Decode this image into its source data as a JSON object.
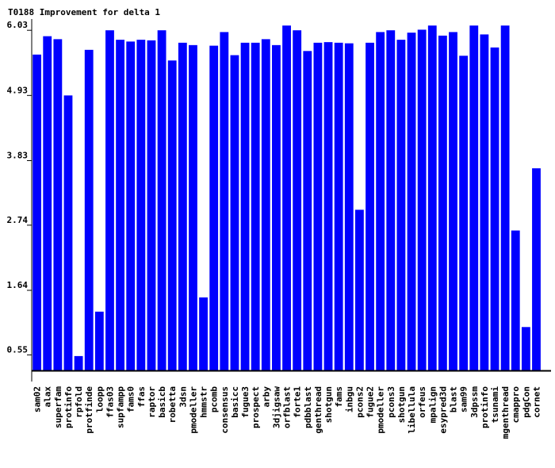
{
  "chart_data": {
    "type": "bar",
    "title": "T0188 Improvement for delta 1",
    "xlabel": "",
    "ylabel": "",
    "ylim": [
      0.1,
      6.22
    ],
    "yticks": [
      "6.03",
      "4.93",
      "3.83",
      "2.74",
      "1.64",
      "0.55"
    ],
    "grid": false,
    "legend": "none",
    "bar_color": "#0000ff",
    "baseline": 0.28,
    "categories": [
      "sam02",
      "alax",
      "superfam",
      "protinfo",
      "rpfold",
      "protfinde",
      "loopp",
      "ffas03",
      "supfampp",
      "fams0",
      "ffas",
      "raptor",
      "basicb",
      "robetta",
      "3dsn",
      "pmodeller",
      "hmmstr",
      "pcomb",
      "consensus",
      "basicc",
      "fugue3",
      "prospect",
      "arby",
      "3djigsaw",
      "orfblast",
      "forte1",
      "pdbblast",
      "genthread",
      "shotgun",
      "fams",
      "inbgu",
      "pcons2",
      "fugue2",
      "pmodeller",
      "pcons3",
      "shotgun",
      "libellula",
      "orfeus",
      "mpalign",
      "esypred3d",
      "blast",
      "sam99",
      "3dpssm",
      "protinfo",
      "tsunami",
      "mgenthread",
      "cmappro",
      "pdgCon",
      "cornet"
    ],
    "values": [
      5.62,
      5.93,
      5.88,
      4.93,
      0.53,
      5.7,
      1.28,
      6.03,
      5.87,
      5.84,
      5.87,
      5.86,
      6.03,
      5.52,
      5.82,
      5.78,
      1.52,
      5.77,
      6.0,
      5.61,
      5.82,
      5.82,
      5.88,
      5.78,
      6.11,
      6.03,
      5.68,
      5.82,
      5.83,
      5.82,
      5.81,
      3.0,
      5.82,
      6.0,
      6.03,
      5.87,
      5.99,
      6.04,
      6.11,
      5.94,
      6.0,
      5.6,
      6.11,
      5.96,
      5.74,
      6.11,
      2.65,
      1.02,
      3.7
    ]
  }
}
